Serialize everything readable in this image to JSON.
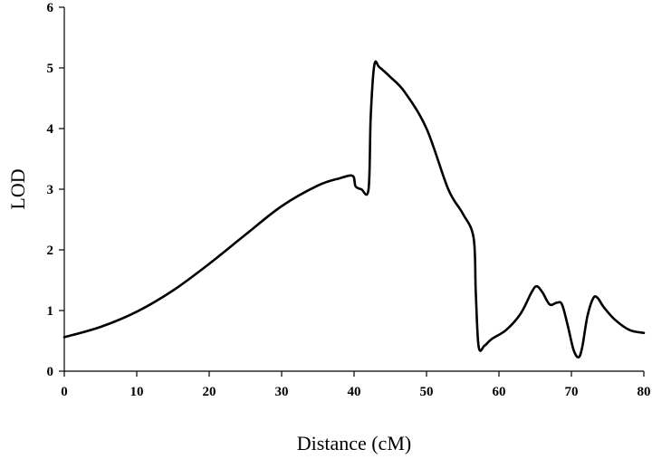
{
  "chart_data": {
    "type": "line",
    "title": "",
    "xlabel": "Distance (cM)",
    "ylabel": "LOD",
    "xlim": [
      0,
      80
    ],
    "ylim": [
      0,
      6
    ],
    "xticks": [
      0,
      10,
      20,
      30,
      40,
      50,
      60,
      70,
      80
    ],
    "yticks": [
      0,
      1,
      2,
      3,
      4,
      5,
      6
    ],
    "xtick_labels": [
      "0",
      "10",
      "20",
      "30",
      "40",
      "50",
      "60",
      "70",
      "80"
    ],
    "ytick_labels": [
      "0",
      "1",
      "2",
      "3",
      "4",
      "5",
      "6"
    ],
    "grid": false,
    "legend": "none",
    "series": [
      {
        "x": [
          0,
          5,
          10,
          15,
          20,
          25,
          30,
          35,
          38,
          39.8,
          40.2,
          41,
          42,
          42.3,
          42.8,
          43.5,
          45,
          47,
          50,
          53,
          55,
          56.5,
          56.8,
          57.2,
          58,
          59,
          61,
          63,
          64.5,
          65.2,
          66,
          67,
          68,
          68.7,
          69.5,
          70.3,
          71,
          71.5,
          72.2,
          73,
          73.6,
          74.5,
          76,
          78,
          80
        ],
        "y": [
          0.56,
          0.73,
          0.98,
          1.33,
          1.77,
          2.25,
          2.72,
          3.06,
          3.18,
          3.22,
          3.05,
          3.0,
          3.0,
          4.2,
          5.05,
          5.01,
          4.85,
          4.6,
          4.0,
          3.0,
          2.6,
          2.2,
          1.3,
          0.4,
          0.42,
          0.53,
          0.68,
          0.95,
          1.3,
          1.4,
          1.3,
          1.1,
          1.13,
          1.1,
          0.75,
          0.35,
          0.23,
          0.4,
          0.9,
          1.2,
          1.21,
          1.05,
          0.85,
          0.68,
          0.63
        ]
      }
    ]
  }
}
